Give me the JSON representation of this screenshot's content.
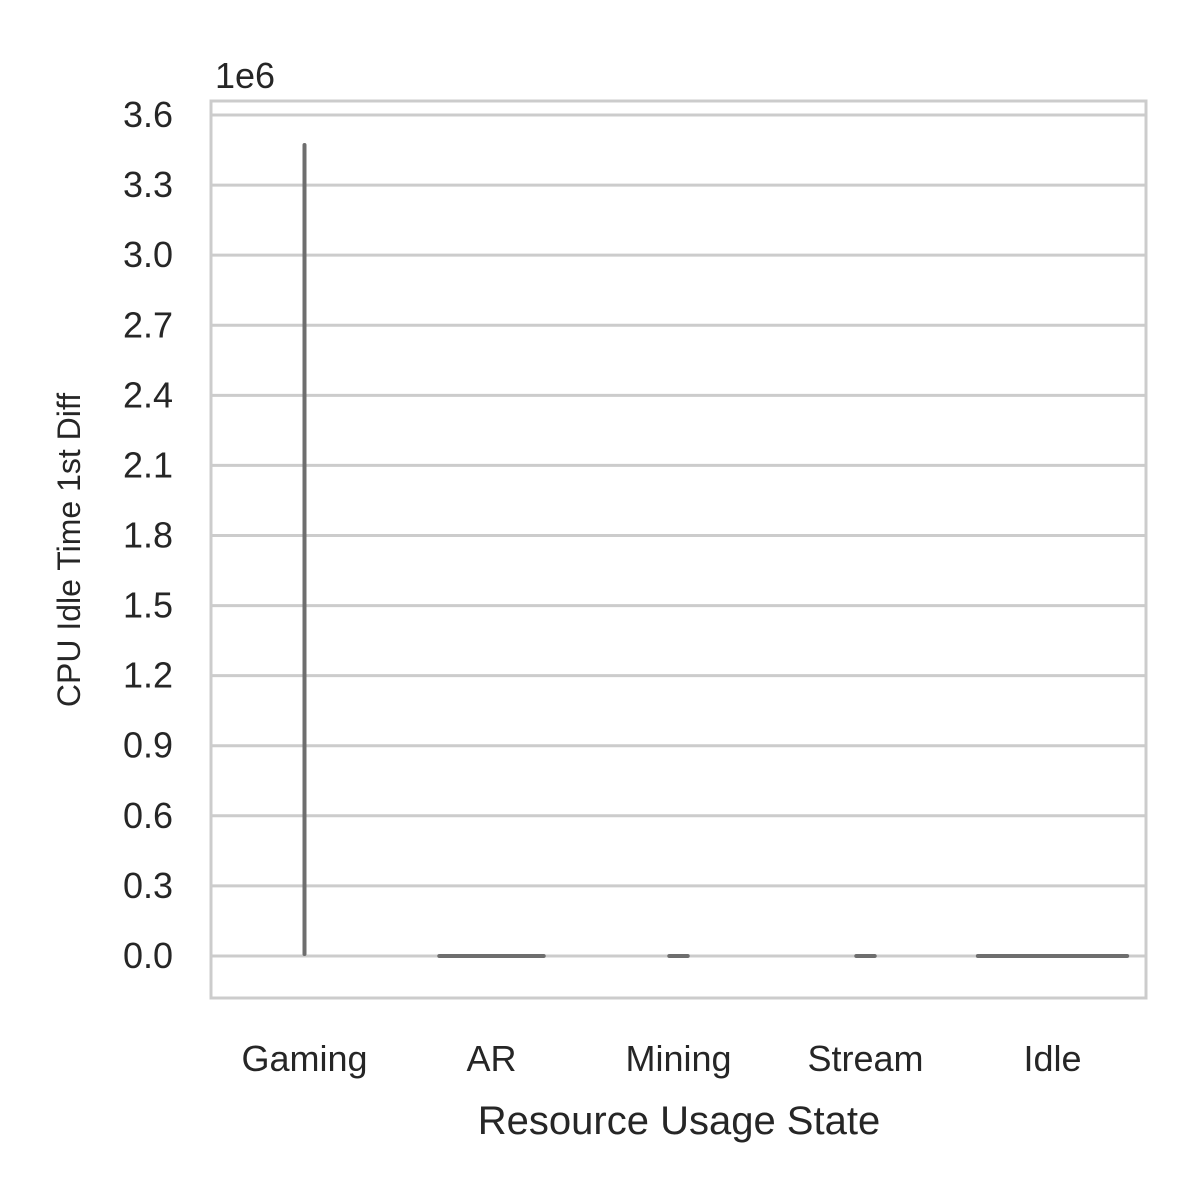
{
  "chart_data": {
    "type": "violin",
    "title": "",
    "xlabel": "Resource Usage State",
    "ylabel": "CPU Idle Time 1st Diff",
    "y_offset_label": "1e6",
    "categories": [
      "Gaming",
      "AR",
      "Mining",
      "Stream",
      "Idle"
    ],
    "yticks": [
      0.0,
      0.3,
      0.6,
      0.9,
      1.2,
      1.5,
      1.8,
      2.1,
      2.4,
      2.7,
      3.0,
      3.3,
      3.6
    ],
    "ytick_labels": [
      "0.0",
      "0.3",
      "0.6",
      "0.9",
      "1.2",
      "1.5",
      "1.8",
      "2.1",
      "2.4",
      "2.7",
      "3.0",
      "3.3",
      "3.6"
    ],
    "ylim": [
      -0.18,
      3.66
    ],
    "y_scale_factor": 1000000,
    "grid": true,
    "series": [
      {
        "category": "Gaming",
        "min": 0.0,
        "max": 3.48,
        "max_width": 0.02
      },
      {
        "category": "AR",
        "min": 0.0,
        "max": 0.0,
        "max_width": 0.58
      },
      {
        "category": "Mining",
        "min": 0.0,
        "max": 0.0,
        "max_width": 0.12
      },
      {
        "category": "Stream",
        "min": 0.0,
        "max": 0.0,
        "max_width": 0.12
      },
      {
        "category": "Idle",
        "min": 0.0,
        "max": 0.0,
        "max_width": 0.82
      }
    ],
    "colors": {
      "violin": "#6e6e6e",
      "grid": "#cccccc",
      "frame": "#cccccc"
    }
  }
}
